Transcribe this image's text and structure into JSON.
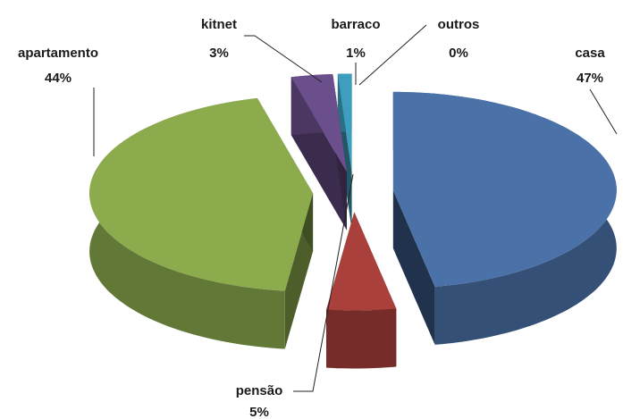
{
  "chart_data": {
    "type": "pie3d",
    "categories": [
      "casa",
      "pensão",
      "apartamento",
      "kitnet",
      "barraco",
      "outros"
    ],
    "values": [
      47,
      5,
      44,
      3,
      1,
      0
    ],
    "value_labels": [
      "47%",
      "5%",
      "44%",
      "3%",
      "1%",
      "0%"
    ],
    "colors": [
      "#4a72a8",
      "#a9403c",
      "#8cab4d",
      "#6b4f8c",
      "#3d9ebd",
      "#e08a2e"
    ]
  }
}
